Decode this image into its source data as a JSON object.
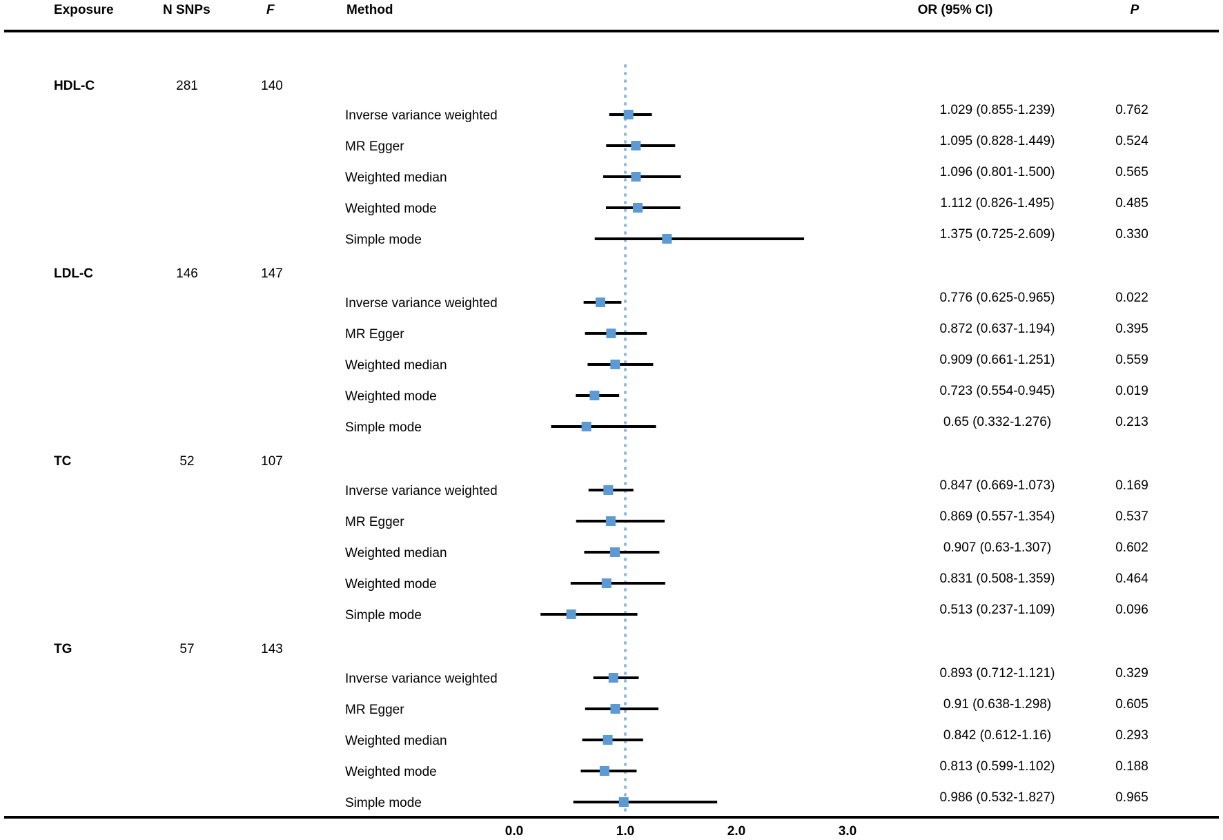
{
  "table": {
    "headers": {
      "exposure": "Exposure",
      "nsnps": "N SNPs",
      "f": "F",
      "method": "Method",
      "or": "OR (95% CI)",
      "p": "P"
    }
  },
  "chart_data": {
    "type": "forest",
    "xlabel": "",
    "xlim": [
      0.0,
      3.0
    ],
    "ticks": [
      "0.0",
      "1.0",
      "2.0",
      "3.0"
    ],
    "ticks_values": [
      0.0,
      1.0,
      2.0,
      3.0
    ],
    "reference_line": 1.0,
    "colors": {
      "marker": "#5b9bd5",
      "reference": "#8dbbe6",
      "ci": "#000000",
      "rule": "#000000"
    },
    "groups": [
      {
        "exposure": "HDL-C",
        "nsnps": "281",
        "f": "140",
        "rows": [
          {
            "method": "Inverse variance weighted",
            "or": 1.029,
            "lo": 0.855,
            "hi": 1.239,
            "or_text": "1.029 (0.855-1.239)",
            "p": "0.762"
          },
          {
            "method": "MR Egger",
            "or": 1.095,
            "lo": 0.828,
            "hi": 1.449,
            "or_text": "1.095 (0.828-1.449)",
            "p": "0.524"
          },
          {
            "method": "Weighted median",
            "or": 1.096,
            "lo": 0.801,
            "hi": 1.5,
            "or_text": "1.096 (0.801-1.500)",
            "p": "0.565"
          },
          {
            "method": "Weighted mode",
            "or": 1.112,
            "lo": 0.826,
            "hi": 1.495,
            "or_text": "1.112 (0.826-1.495)",
            "p": "0.485"
          },
          {
            "method": "Simple mode",
            "or": 1.375,
            "lo": 0.725,
            "hi": 2.609,
            "or_text": "1.375 (0.725-2.609)",
            "p": "0.330"
          }
        ]
      },
      {
        "exposure": "LDL-C",
        "nsnps": "146",
        "f": "147",
        "rows": [
          {
            "method": "Inverse variance weighted",
            "or": 0.776,
            "lo": 0.625,
            "hi": 0.965,
            "or_text": "0.776 (0.625-0.965)",
            "p": "0.022"
          },
          {
            "method": "MR Egger",
            "or": 0.872,
            "lo": 0.637,
            "hi": 1.194,
            "or_text": "0.872 (0.637-1.194)",
            "p": "0.395"
          },
          {
            "method": "Weighted median",
            "or": 0.909,
            "lo": 0.661,
            "hi": 1.251,
            "or_text": "0.909 (0.661-1.251)",
            "p": "0.559"
          },
          {
            "method": "Weighted mode",
            "or": 0.723,
            "lo": 0.554,
            "hi": 0.945,
            "or_text": "0.723 (0.554-0.945)",
            "p": "0.019"
          },
          {
            "method": "Simple mode",
            "or": 0.65,
            "lo": 0.332,
            "hi": 1.276,
            "or_text": "0.65 (0.332-1.276)",
            "p": "0.213"
          }
        ]
      },
      {
        "exposure": "TC",
        "nsnps": "52",
        "f": "107",
        "rows": [
          {
            "method": "Inverse variance weighted",
            "or": 0.847,
            "lo": 0.669,
            "hi": 1.073,
            "or_text": "0.847 (0.669-1.073)",
            "p": "0.169"
          },
          {
            "method": "MR Egger",
            "or": 0.869,
            "lo": 0.557,
            "hi": 1.354,
            "or_text": "0.869 (0.557-1.354)",
            "p": "0.537"
          },
          {
            "method": "Weighted median",
            "or": 0.907,
            "lo": 0.63,
            "hi": 1.307,
            "or_text": "0.907 (0.63-1.307)",
            "p": "0.602"
          },
          {
            "method": "Weighted mode",
            "or": 0.831,
            "lo": 0.508,
            "hi": 1.359,
            "or_text": "0.831 (0.508-1.359)",
            "p": "0.464"
          },
          {
            "method": "Simple mode",
            "or": 0.513,
            "lo": 0.237,
            "hi": 1.109,
            "or_text": "0.513 (0.237-1.109)",
            "p": "0.096"
          }
        ]
      },
      {
        "exposure": "TG",
        "nsnps": "57",
        "f": "143",
        "rows": [
          {
            "method": "Inverse variance weighted",
            "or": 0.893,
            "lo": 0.712,
            "hi": 1.121,
            "or_text": "0.893 (0.712-1.121)",
            "p": "0.329"
          },
          {
            "method": "MR Egger",
            "or": 0.91,
            "lo": 0.638,
            "hi": 1.298,
            "or_text": "0.91 (0.638-1.298)",
            "p": "0.605"
          },
          {
            "method": "Weighted median",
            "or": 0.842,
            "lo": 0.612,
            "hi": 1.16,
            "or_text": "0.842 (0.612-1.16)",
            "p": "0.293"
          },
          {
            "method": "Weighted mode",
            "or": 0.813,
            "lo": 0.599,
            "hi": 1.102,
            "or_text": "0.813 (0.599-1.102)",
            "p": "0.188"
          },
          {
            "method": "Simple mode",
            "or": 0.986,
            "lo": 0.532,
            "hi": 1.827,
            "or_text": "0.986 (0.532-1.827)",
            "p": "0.965"
          }
        ]
      }
    ]
  }
}
